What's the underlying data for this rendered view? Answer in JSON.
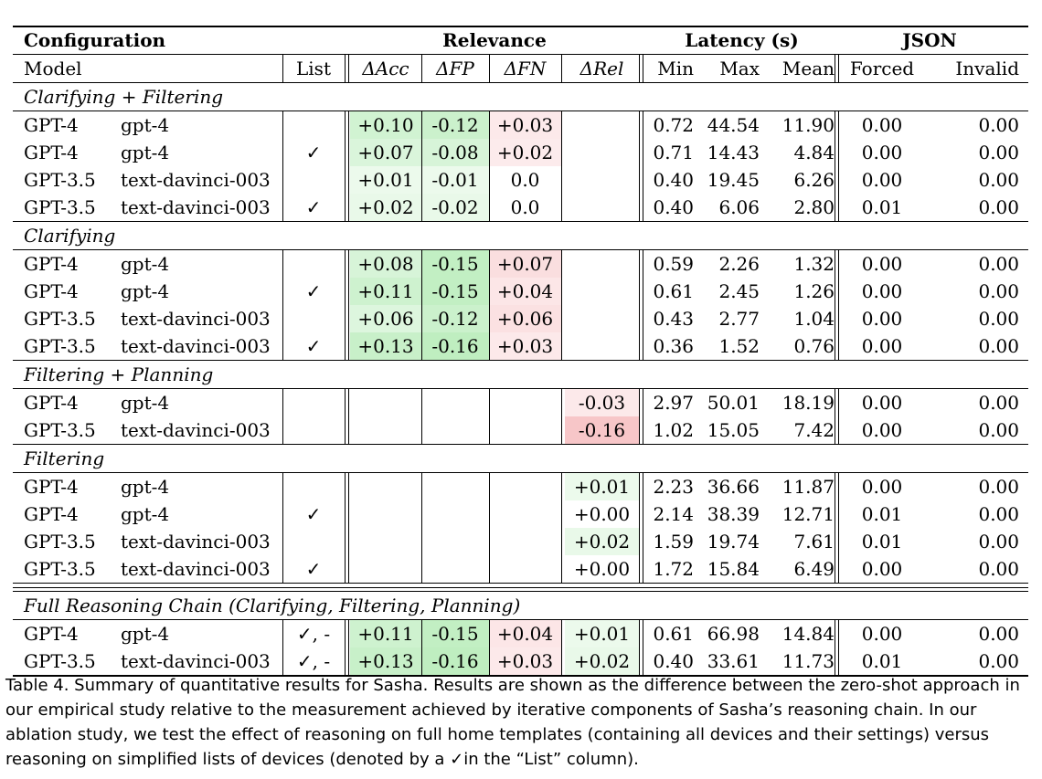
{
  "header": {
    "configuration": "Configuration",
    "relevance": "Relevance",
    "latency": "Latency (s)",
    "json": "JSON",
    "columns": [
      "Model",
      "List",
      "ΔAcc",
      "ΔFP",
      "ΔFN",
      "ΔRel",
      "Min",
      "Max",
      "Mean",
      "Forced",
      "Invalid"
    ]
  },
  "sections": [
    {
      "title": "Clarifying + Filtering",
      "rows": [
        {
          "family": "GPT-4",
          "model": "gpt-4",
          "list": "",
          "acc": "+0.10",
          "fp": "-0.12",
          "fn": "+0.03",
          "rel": "",
          "min": "0.72",
          "max": "44.54",
          "mean": "11.90",
          "forced": "0.00",
          "invalid": "0.00"
        },
        {
          "family": "GPT-4",
          "model": "gpt-4",
          "list": "✓",
          "acc": "+0.07",
          "fp": "-0.08",
          "fn": "+0.02",
          "rel": "",
          "min": "0.71",
          "max": "14.43",
          "mean": "4.84",
          "forced": "0.00",
          "invalid": "0.00"
        },
        {
          "family": "GPT-3.5",
          "model": "text-davinci-003",
          "list": "",
          "acc": "+0.01",
          "fp": "-0.01",
          "fn": "0.0",
          "rel": "",
          "min": "0.40",
          "max": "19.45",
          "mean": "6.26",
          "forced": "0.00",
          "invalid": "0.00"
        },
        {
          "family": "GPT-3.5",
          "model": "text-davinci-003",
          "list": "✓",
          "acc": "+0.02",
          "fp": "-0.02",
          "fn": "0.0",
          "rel": "",
          "min": "0.40",
          "max": "6.06",
          "mean": "2.80",
          "forced": "0.01",
          "invalid": "0.00"
        }
      ]
    },
    {
      "title": "Clarifying",
      "rows": [
        {
          "family": "GPT-4",
          "model": "gpt-4",
          "list": "",
          "acc": "+0.08",
          "fp": "-0.15",
          "fn": "+0.07",
          "rel": "",
          "min": "0.59",
          "max": "2.26",
          "mean": "1.32",
          "forced": "0.00",
          "invalid": "0.00"
        },
        {
          "family": "GPT-4",
          "model": "gpt-4",
          "list": "✓",
          "acc": "+0.11",
          "fp": "-0.15",
          "fn": "+0.04",
          "rel": "",
          "min": "0.61",
          "max": "2.45",
          "mean": "1.26",
          "forced": "0.00",
          "invalid": "0.00"
        },
        {
          "family": "GPT-3.5",
          "model": "text-davinci-003",
          "list": "",
          "acc": "+0.06",
          "fp": "-0.12",
          "fn": "+0.06",
          "rel": "",
          "min": "0.43",
          "max": "2.77",
          "mean": "1.04",
          "forced": "0.00",
          "invalid": "0.00"
        },
        {
          "family": "GPT-3.5",
          "model": "text-davinci-003",
          "list": "✓",
          "acc": "+0.13",
          "fp": "-0.16",
          "fn": "+0.03",
          "rel": "",
          "min": "0.36",
          "max": "1.52",
          "mean": "0.76",
          "forced": "0.00",
          "invalid": "0.00"
        }
      ]
    },
    {
      "title": "Filtering + Planning",
      "rows": [
        {
          "family": "GPT-4",
          "model": "gpt-4",
          "list": "",
          "acc": "",
          "fp": "",
          "fn": "",
          "rel": "-0.03",
          "min": "2.97",
          "max": "50.01",
          "mean": "18.19",
          "forced": "0.00",
          "invalid": "0.00"
        },
        {
          "family": "GPT-3.5",
          "model": "text-davinci-003",
          "list": "",
          "acc": "",
          "fp": "",
          "fn": "",
          "rel": "-0.16",
          "min": "1.02",
          "max": "15.05",
          "mean": "7.42",
          "forced": "0.00",
          "invalid": "0.00"
        }
      ]
    },
    {
      "title": "Filtering",
      "rows": [
        {
          "family": "GPT-4",
          "model": "gpt-4",
          "list": "",
          "acc": "",
          "fp": "",
          "fn": "",
          "rel": "+0.01",
          "min": "2.23",
          "max": "36.66",
          "mean": "11.87",
          "forced": "0.00",
          "invalid": "0.00"
        },
        {
          "family": "GPT-4",
          "model": "gpt-4",
          "list": "✓",
          "acc": "",
          "fp": "",
          "fn": "",
          "rel": "+0.00",
          "min": "2.14",
          "max": "38.39",
          "mean": "12.71",
          "forced": "0.01",
          "invalid": "0.00"
        },
        {
          "family": "GPT-3.5",
          "model": "text-davinci-003",
          "list": "",
          "acc": "",
          "fp": "",
          "fn": "",
          "rel": "+0.02",
          "min": "1.59",
          "max": "19.74",
          "mean": "7.61",
          "forced": "0.01",
          "invalid": "0.00"
        },
        {
          "family": "GPT-3.5",
          "model": "text-davinci-003",
          "list": "✓",
          "acc": "",
          "fp": "",
          "fn": "",
          "rel": "+0.00",
          "min": "1.72",
          "max": "15.84",
          "mean": "6.49",
          "forced": "0.00",
          "invalid": "0.00"
        }
      ]
    },
    {
      "title": "Full Reasoning Chain (Clarifying, Filtering, Planning)",
      "rows": [
        {
          "family": "GPT-4",
          "model": "gpt-4",
          "list": "✓, -",
          "acc": "+0.11",
          "fp": "-0.15",
          "fn": "+0.04",
          "rel": "+0.01",
          "min": "0.61",
          "max": "66.98",
          "mean": "14.84",
          "forced": "0.00",
          "invalid": "0.00"
        },
        {
          "family": "GPT-3.5",
          "model": "text-davinci-003",
          "list": "✓, -",
          "acc": "+0.13",
          "fp": "-0.16",
          "fn": "+0.03",
          "rel": "+0.02",
          "min": "0.40",
          "max": "33.61",
          "mean": "11.73",
          "forced": "0.01",
          "invalid": "0.00"
        }
      ]
    }
  ],
  "caption": "Table 4.  Summary of quantitative results for Sasha. Results are shown as the difference between the zero-shot approach in our empirical study relative to the measurement achieved by iterative components of Sasha’s reasoning chain. In our ablation study, we test the effect of reasoning on full home templates (containing all devices and their settings) versus reasoning on simplified lists of devices (denoted by a ✓in the “List” column)."
}
